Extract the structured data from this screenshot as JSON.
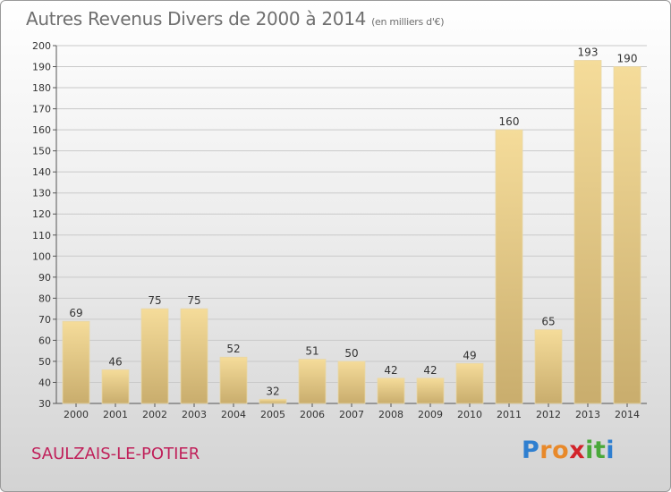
{
  "header": {
    "title": "Autres Revenus Divers de 2000 à 2014",
    "subtitle": "(en milliers d'€)"
  },
  "footer": {
    "place": "SAULZAIS-LE-POTIER",
    "logo": "Proxiti"
  },
  "colors": {
    "bar_light": "#f5dc9a",
    "bar_dark": "#c9ad6d",
    "grid": "#c9c9c9",
    "place_text": "#c0205a",
    "title_text": "#6f6f6f"
  },
  "chart_data": {
    "type": "bar",
    "title": "Autres Revenus Divers de 2000 à 2014",
    "subtitle": "(en milliers d'€)",
    "xlabel": "",
    "ylabel": "",
    "categories": [
      "2000",
      "2001",
      "2002",
      "2003",
      "2004",
      "2005",
      "2006",
      "2007",
      "2008",
      "2009",
      "2010",
      "2011",
      "2012",
      "2013",
      "2014"
    ],
    "values": [
      69,
      46,
      75,
      75,
      52,
      32,
      51,
      50,
      42,
      42,
      49,
      160,
      65,
      193,
      190
    ],
    "ylim": [
      30,
      200
    ],
    "yticks": [
      30,
      40,
      50,
      60,
      70,
      80,
      90,
      100,
      110,
      120,
      130,
      140,
      150,
      160,
      170,
      180,
      190,
      200
    ],
    "grid": true,
    "data_labels": true
  }
}
